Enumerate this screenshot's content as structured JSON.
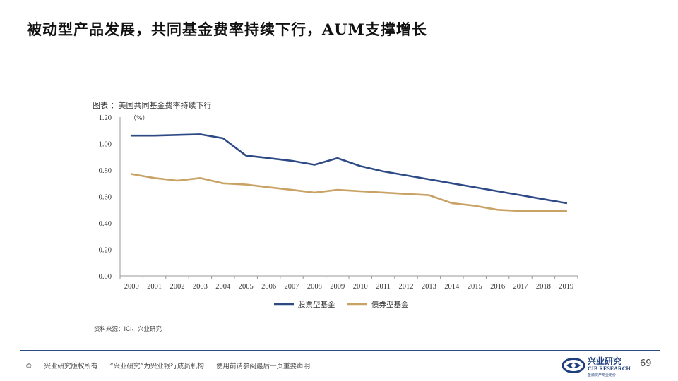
{
  "slide": {
    "title": "被动型产品发展，共同基金费率持续下行，AUM支撑增长",
    "source": "资料来源：ICI、兴业研究",
    "page_number": "69"
  },
  "footer": {
    "copyright_symbol": "©",
    "text1": "兴业研究版权所有",
    "text2": "“兴业研究”为兴业银行成员机构",
    "text3": "使用前请参阅最后一页重要声明"
  },
  "logo": {
    "cn": "兴业研究",
    "en": "CIB RESEARCH",
    "tagline": "金融资产专业定价"
  },
  "colors": {
    "equity": "#2e4a86",
    "bond": "#c9a265",
    "axis": "#999999",
    "accent": "#1f3f7c"
  },
  "chart_data": {
    "type": "line",
    "title": "图表 ：美国共同基金费率持续下行",
    "unit_label": "（%）",
    "categories": [
      "2000",
      "2001",
      "2002",
      "2003",
      "2004",
      "2005",
      "2006",
      "2007",
      "2008",
      "2009",
      "2010",
      "2011",
      "2012",
      "2013",
      "2014",
      "2015",
      "2016",
      "2017",
      "2018",
      "2019"
    ],
    "y_ticks": [
      "0.00",
      "0.20",
      "0.40",
      "0.60",
      "0.80",
      "1.00",
      "1.20"
    ],
    "ylim": [
      0,
      1.2
    ],
    "grid": false,
    "legend_position": "bottom",
    "series": [
      {
        "name": "股票型基金",
        "color": "#2e4a86",
        "values": [
          1.06,
          1.06,
          1.065,
          1.07,
          1.04,
          0.91,
          0.89,
          0.87,
          0.84,
          0.89,
          0.83,
          0.79,
          0.76,
          0.73,
          0.7,
          0.67,
          0.64,
          0.61,
          0.58,
          0.55
        ]
      },
      {
        "name": "债券型基金",
        "color": "#c9a265",
        "values": [
          0.77,
          0.74,
          0.72,
          0.74,
          0.7,
          0.69,
          0.67,
          0.65,
          0.63,
          0.65,
          0.64,
          0.63,
          0.62,
          0.61,
          0.55,
          0.53,
          0.5,
          0.49,
          0.49,
          0.49
        ]
      }
    ]
  }
}
